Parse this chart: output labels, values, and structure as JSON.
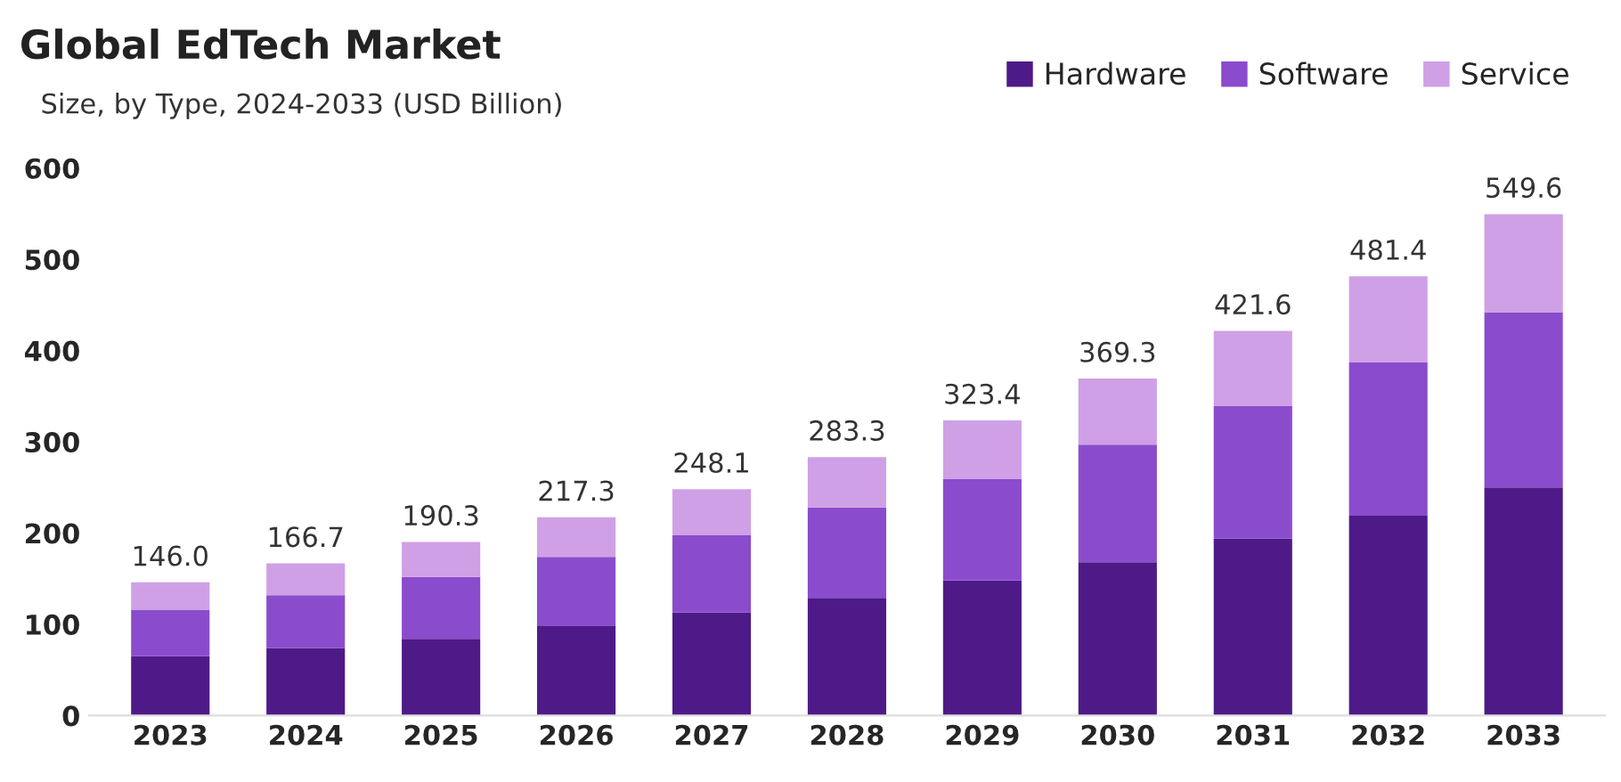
{
  "chart_data": {
    "type": "bar",
    "title": "Global EdTech Market",
    "subtitle": "Size, by Type, 2024-2033 (USD Billion)",
    "categories": [
      "2023",
      "2024",
      "2025",
      "2026",
      "2027",
      "2028",
      "2029",
      "2030",
      "2031",
      "2032",
      "2033"
    ],
    "stacked": true,
    "series": [
      {
        "name": "Hardware",
        "color": "#4e1a88",
        "values": [
          65,
          74,
          84,
          98,
          113,
          129,
          148,
          168,
          194,
          219,
          250
        ]
      },
      {
        "name": "Software",
        "color": "#8a4ccc",
        "values": [
          51,
          58,
          68,
          76,
          85,
          99,
          111,
          129,
          145,
          168,
          192
        ]
      },
      {
        "name": "Service",
        "color": "#cfa0e6",
        "values": [
          30,
          34.7,
          38.3,
          43.3,
          50.1,
          55.3,
          64.4,
          72.3,
          82.6,
          94.4,
          107.6
        ]
      }
    ],
    "totals": [
      "146.0",
      "166.7",
      "190.3",
      "217.3",
      "248.1",
      "283.3",
      "323.4",
      "369.3",
      "421.6",
      "481.4",
      "549.6"
    ],
    "ylim": [
      0,
      600
    ],
    "yticks": [
      0,
      100,
      200,
      300,
      400,
      500,
      600
    ],
    "grid": false,
    "legend": "top right"
  }
}
